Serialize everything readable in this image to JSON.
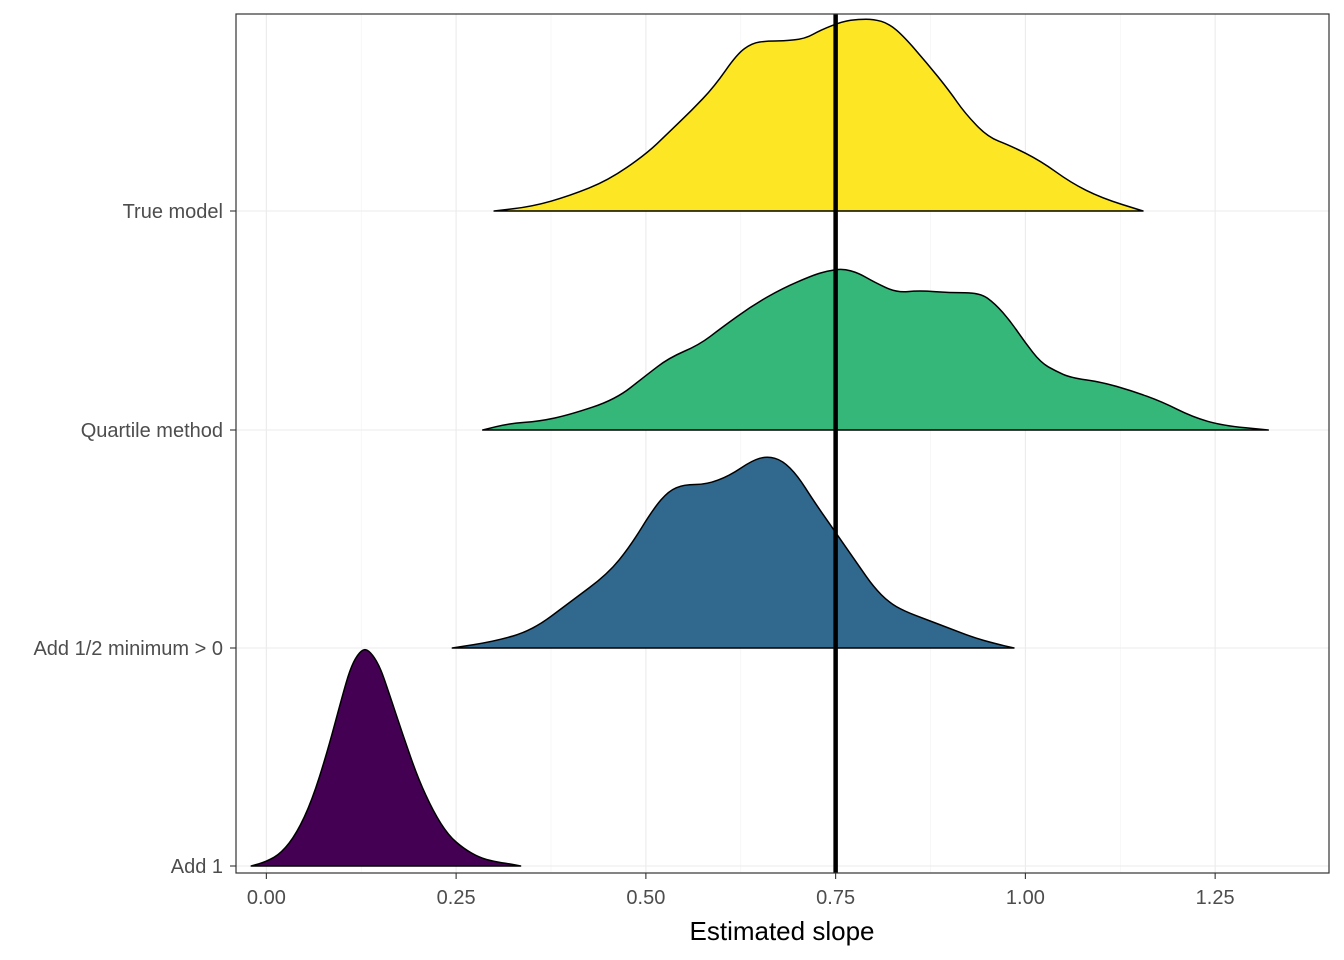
{
  "chart_data": {
    "type": "ridgeline",
    "xlabel": "Estimated slope",
    "ylabel": "",
    "xlim": [
      -0.04,
      1.4
    ],
    "x_ticks": [
      "0.00",
      "0.25",
      "0.50",
      "0.75",
      "1.00",
      "1.25"
    ],
    "x_tick_values": [
      0,
      0.25,
      0.5,
      0.75,
      1.0,
      1.25
    ],
    "categories": [
      "Add 1",
      "Add 1/2 minimum > 0",
      "Quartile method",
      "True model"
    ],
    "reference_line": {
      "x": 0.75,
      "color": "#000000"
    },
    "grid": true,
    "series": [
      {
        "category": "Add 1",
        "color": "#440154",
        "density": [
          [
            -0.02,
            0.0
          ],
          [
            0.0,
            0.02
          ],
          [
            0.02,
            0.06
          ],
          [
            0.04,
            0.15
          ],
          [
            0.06,
            0.3
          ],
          [
            0.08,
            0.52
          ],
          [
            0.1,
            0.78
          ],
          [
            0.11,
            0.9
          ],
          [
            0.12,
            0.97
          ],
          [
            0.13,
            1.0
          ],
          [
            0.14,
            0.97
          ],
          [
            0.15,
            0.91
          ],
          [
            0.16,
            0.81
          ],
          [
            0.18,
            0.6
          ],
          [
            0.2,
            0.4
          ],
          [
            0.22,
            0.25
          ],
          [
            0.24,
            0.14
          ],
          [
            0.26,
            0.08
          ],
          [
            0.28,
            0.04
          ],
          [
            0.3,
            0.02
          ],
          [
            0.32,
            0.01
          ],
          [
            0.335,
            0.0
          ]
        ]
      },
      {
        "category": "Add 1/2 minimum > 0",
        "color": "#31688e",
        "density": [
          [
            0.245,
            0.0
          ],
          [
            0.3,
            0.03
          ],
          [
            0.35,
            0.08
          ],
          [
            0.4,
            0.21
          ],
          [
            0.45,
            0.34
          ],
          [
            0.48,
            0.47
          ],
          [
            0.51,
            0.64
          ],
          [
            0.53,
            0.72
          ],
          [
            0.55,
            0.75
          ],
          [
            0.58,
            0.75
          ],
          [
            0.61,
            0.79
          ],
          [
            0.64,
            0.86
          ],
          [
            0.66,
            0.88
          ],
          [
            0.68,
            0.86
          ],
          [
            0.7,
            0.79
          ],
          [
            0.72,
            0.68
          ],
          [
            0.75,
            0.53
          ],
          [
            0.78,
            0.38
          ],
          [
            0.8,
            0.28
          ],
          [
            0.82,
            0.21
          ],
          [
            0.84,
            0.17
          ],
          [
            0.87,
            0.13
          ],
          [
            0.9,
            0.09
          ],
          [
            0.93,
            0.05
          ],
          [
            0.96,
            0.02
          ],
          [
            0.985,
            0.0
          ]
        ]
      },
      {
        "category": "Quartile method",
        "color": "#35b779",
        "density": [
          [
            0.285,
            0.0
          ],
          [
            0.32,
            0.03
          ],
          [
            0.36,
            0.04
          ],
          [
            0.4,
            0.07
          ],
          [
            0.46,
            0.14
          ],
          [
            0.5,
            0.25
          ],
          [
            0.53,
            0.33
          ],
          [
            0.57,
            0.39
          ],
          [
            0.6,
            0.47
          ],
          [
            0.64,
            0.57
          ],
          [
            0.68,
            0.65
          ],
          [
            0.72,
            0.71
          ],
          [
            0.74,
            0.73
          ],
          [
            0.76,
            0.74
          ],
          [
            0.78,
            0.72
          ],
          [
            0.8,
            0.68
          ],
          [
            0.83,
            0.63
          ],
          [
            0.86,
            0.64
          ],
          [
            0.9,
            0.63
          ],
          [
            0.94,
            0.63
          ],
          [
            0.96,
            0.58
          ],
          [
            0.98,
            0.5
          ],
          [
            1.0,
            0.4
          ],
          [
            1.02,
            0.31
          ],
          [
            1.04,
            0.27
          ],
          [
            1.06,
            0.24
          ],
          [
            1.1,
            0.22
          ],
          [
            1.14,
            0.18
          ],
          [
            1.18,
            0.13
          ],
          [
            1.22,
            0.06
          ],
          [
            1.26,
            0.02
          ],
          [
            1.32,
            0.0
          ]
        ]
      },
      {
        "category": "True model",
        "color": "#fde725",
        "density": [
          [
            0.3,
            0.0
          ],
          [
            0.35,
            0.02
          ],
          [
            0.4,
            0.07
          ],
          [
            0.45,
            0.14
          ],
          [
            0.5,
            0.26
          ],
          [
            0.53,
            0.36
          ],
          [
            0.56,
            0.46
          ],
          [
            0.59,
            0.57
          ],
          [
            0.62,
            0.72
          ],
          [
            0.64,
            0.77
          ],
          [
            0.66,
            0.78
          ],
          [
            0.68,
            0.78
          ],
          [
            0.71,
            0.79
          ],
          [
            0.73,
            0.83
          ],
          [
            0.76,
            0.87
          ],
          [
            0.78,
            0.88
          ],
          [
            0.8,
            0.88
          ],
          [
            0.82,
            0.86
          ],
          [
            0.84,
            0.8
          ],
          [
            0.87,
            0.68
          ],
          [
            0.9,
            0.55
          ],
          [
            0.92,
            0.45
          ],
          [
            0.95,
            0.34
          ],
          [
            0.98,
            0.3
          ],
          [
            1.02,
            0.23
          ],
          [
            1.06,
            0.13
          ],
          [
            1.1,
            0.06
          ],
          [
            1.155,
            0.0
          ]
        ]
      }
    ]
  }
}
